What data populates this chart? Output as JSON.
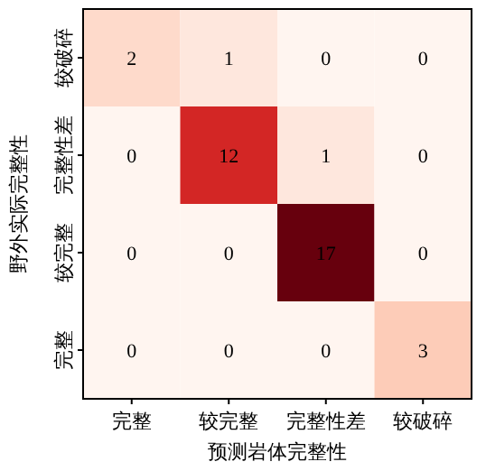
{
  "chart_data": {
    "type": "heatmap",
    "xlabel": "预测岩体完整性",
    "ylabel": "野外实际完整性",
    "categories": [
      "完整",
      "较完整",
      "完整性差",
      "较破碎"
    ],
    "y_categories": [
      "较破碎",
      "完整性差",
      "较完整",
      "完整"
    ],
    "cells": [
      [
        2,
        1,
        0,
        0
      ],
      [
        0,
        12,
        1,
        0
      ],
      [
        0,
        0,
        17,
        0
      ],
      [
        0,
        0,
        0,
        3
      ]
    ],
    "data_labels": true
  }
}
